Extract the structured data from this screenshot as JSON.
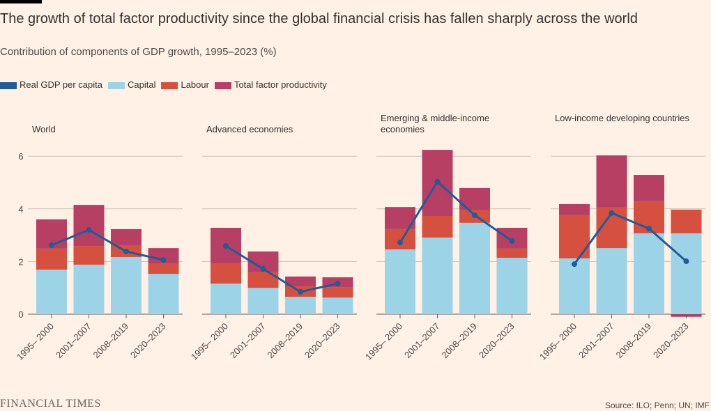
{
  "title": "The growth of total factor productivity since the global financial crisis has fallen sharply across the world",
  "subtitle": "Contribution of components of GDP growth, 1995–2023 (%)",
  "legend": [
    {
      "name": "Real GDP per capita",
      "color": "#1f5c99"
    },
    {
      "name": "Capital",
      "color": "#9dd3e6"
    },
    {
      "name": "Labour",
      "color": "#d6503f"
    },
    {
      "name": "Total factor productivity",
      "color": "#b63f63"
    }
  ],
  "source": "Source: ILO; Penn; UN; IMF",
  "logo": "FINANCIAL TIMES",
  "chart_data": [
    {
      "type": "bar",
      "stacked": true,
      "title": "World",
      "categories": [
        "1995– 2000",
        "2001–2007",
        "2008–2019",
        "2020–2023"
      ],
      "ylim": [
        0,
        6
      ],
      "yticks": [
        0,
        2,
        4,
        6
      ],
      "series": [
        {
          "name": "Capital",
          "values": [
            1.69,
            1.88,
            2.17,
            1.53
          ]
        },
        {
          "name": "Labour",
          "values": [
            0.8,
            0.71,
            0.45,
            0.4
          ]
        },
        {
          "name": "Total factor productivity",
          "values": [
            1.11,
            1.56,
            0.61,
            0.58
          ]
        },
        {
          "name": "Real GDP per capita",
          "type": "line",
          "values": [
            2.62,
            3.2,
            2.38,
            2.06
          ]
        }
      ]
    },
    {
      "type": "bar",
      "stacked": true,
      "title": "Advanced economies",
      "categories": [
        "1995– 2000",
        "2001–2007",
        "2008–2019",
        "2020–2023"
      ],
      "ylim": [
        0,
        6
      ],
      "series": [
        {
          "name": "Capital",
          "values": [
            1.16,
            1.0,
            0.66,
            0.63
          ]
        },
        {
          "name": "Labour",
          "values": [
            0.77,
            0.59,
            0.4,
            0.4
          ]
        },
        {
          "name": "Total factor productivity",
          "values": [
            1.35,
            0.79,
            0.37,
            0.37
          ]
        },
        {
          "name": "Real GDP per capita",
          "type": "line",
          "values": [
            2.59,
            1.72,
            0.85,
            1.16
          ]
        }
      ]
    },
    {
      "type": "bar",
      "stacked": true,
      "title": "Emerging & middle-income economies",
      "categories": [
        "1995– 2000",
        "2001–2007",
        "2008–2019",
        "2020–2023"
      ],
      "ylim": [
        0,
        6
      ],
      "series": [
        {
          "name": "Capital",
          "values": [
            2.46,
            2.91,
            3.47,
            2.14
          ]
        },
        {
          "name": "Labour",
          "values": [
            0.77,
            0.82,
            0.47,
            0.35
          ]
        },
        {
          "name": "Total factor productivity",
          "values": [
            0.84,
            2.51,
            0.85,
            0.79
          ]
        },
        {
          "name": "Real GDP per capita",
          "type": "line",
          "values": [
            2.72,
            5.03,
            3.76,
            2.78
          ]
        }
      ]
    },
    {
      "type": "bar",
      "stacked": true,
      "title": "Low-income developing countries",
      "categories": [
        "1995– 2000",
        "2001–2007",
        "2008–2019",
        "2020–2023"
      ],
      "ylim": [
        0,
        6
      ],
      "series": [
        {
          "name": "Capital",
          "values": [
            2.12,
            2.51,
            3.07,
            3.07
          ]
        },
        {
          "name": "Labour",
          "values": [
            1.64,
            1.54,
            1.22,
            0.9
          ]
        },
        {
          "name": "Total factor productivity",
          "values": [
            0.42,
            1.98,
            1.0,
            -0.1
          ]
        },
        {
          "name": "Real GDP per capita",
          "type": "line",
          "values": [
            1.9,
            3.84,
            3.25,
            2.01
          ]
        }
      ]
    }
  ]
}
